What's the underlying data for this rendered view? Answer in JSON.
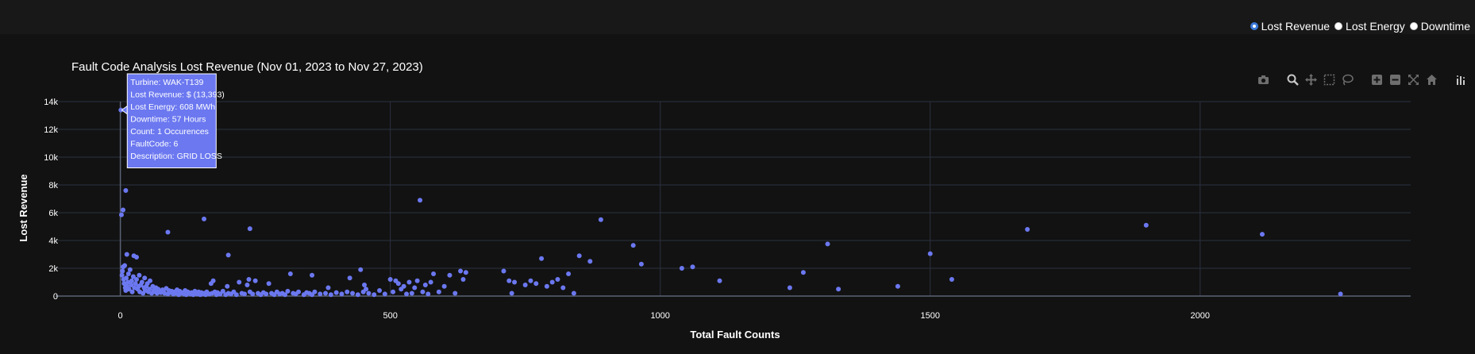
{
  "metric_selector": {
    "options": [
      {
        "label": "Lost Revenue",
        "checked": true
      },
      {
        "label": "Lost Energy",
        "checked": false
      },
      {
        "label": "Downtime",
        "checked": false
      }
    ]
  },
  "modebar": {
    "buttons": [
      "camera-icon",
      "zoom-icon",
      "pan-icon",
      "box-select-icon",
      "lasso-select-icon",
      "zoom-in-icon",
      "zoom-out-icon",
      "autoscale-icon",
      "reset-axes-icon",
      "plotly-logo-icon"
    ]
  },
  "tooltip": {
    "lines": [
      "Turbine: WAK-T139",
      "Lost Revenue: $ (13,393)",
      "Lost Energy: 608 MWh",
      "Downtime: 57 Hours",
      "Count: 1 Occurences",
      "FaultCode: 6",
      "Description: GRID LOSS"
    ],
    "point": {
      "x": 1,
      "y": 13393
    }
  },
  "colors": {
    "marker": "#6b78f0",
    "grid": "#2b3140",
    "background": "#121212",
    "tooltip_bg": "#6b78f0"
  },
  "chart_data": {
    "type": "scatter",
    "title": "Fault Code Analysis Lost Revenue (Nov 01, 2023 to Nov 27, 2023)",
    "xlabel": "Total Fault Counts",
    "ylabel": "Lost Revenue",
    "xlim": [
      -120,
      2390
    ],
    "ylim": [
      0,
      14000
    ],
    "x_ticks": [
      0,
      500,
      1000,
      1500,
      2000
    ],
    "x_tick_labels": [
      "0",
      "500",
      "1000",
      "1500",
      "2000"
    ],
    "y_ticks": [
      0,
      2000,
      4000,
      6000,
      8000,
      10000,
      12000,
      14000
    ],
    "y_tick_labels": [
      "0",
      "2k",
      "4k",
      "6k",
      "8k",
      "10k",
      "12k",
      "14k"
    ],
    "grid": true,
    "series": [
      {
        "points": [
          [
            1,
            13393
          ],
          [
            2,
            5850
          ],
          [
            5,
            6200
          ],
          [
            10,
            7600
          ],
          [
            12,
            3000
          ],
          [
            25,
            2900
          ],
          [
            30,
            2800
          ],
          [
            88,
            4600
          ],
          [
            155,
            5550
          ],
          [
            200,
            2950
          ],
          [
            240,
            4850
          ],
          [
            555,
            6900
          ],
          [
            890,
            5500
          ],
          [
            950,
            3650
          ],
          [
            1310,
            3750
          ],
          [
            1500,
            3050
          ],
          [
            1680,
            4800
          ],
          [
            1900,
            5100
          ],
          [
            2115,
            4450
          ],
          [
            3,
            1500
          ],
          [
            4,
            1800
          ],
          [
            5,
            2100
          ],
          [
            6,
            1200
          ],
          [
            7,
            900
          ],
          [
            8,
            2200
          ],
          [
            9,
            600
          ],
          [
            10,
            400
          ],
          [
            11,
            1300
          ],
          [
            12,
            700
          ],
          [
            14,
            1000
          ],
          [
            15,
            1600
          ],
          [
            16,
            500
          ],
          [
            18,
            1900
          ],
          [
            20,
            800
          ],
          [
            21,
            1100
          ],
          [
            22,
            300
          ],
          [
            24,
            1400
          ],
          [
            26,
            600
          ],
          [
            28,
            900
          ],
          [
            30,
            1200
          ],
          [
            32,
            500
          ],
          [
            34,
            700
          ],
          [
            35,
            1500
          ],
          [
            36,
            300
          ],
          [
            38,
            800
          ],
          [
            40,
            1000
          ],
          [
            42,
            200
          ],
          [
            44,
            600
          ],
          [
            45,
            1300
          ],
          [
            46,
            400
          ],
          [
            48,
            700
          ],
          [
            50,
            900
          ],
          [
            52,
            300
          ],
          [
            54,
            500
          ],
          [
            55,
            1100
          ],
          [
            58,
            200
          ],
          [
            60,
            700
          ],
          [
            62,
            400
          ],
          [
            64,
            300
          ],
          [
            66,
            600
          ],
          [
            68,
            200
          ],
          [
            70,
            500
          ],
          [
            72,
            350
          ],
          [
            75,
            250
          ],
          [
            78,
            450
          ],
          [
            80,
            300
          ],
          [
            82,
            200
          ],
          [
            85,
            550
          ],
          [
            88,
            150
          ],
          [
            90,
            400
          ],
          [
            92,
            250
          ],
          [
            95,
            350
          ],
          [
            98,
            150
          ],
          [
            100,
            300
          ],
          [
            102,
            200
          ],
          [
            105,
            450
          ],
          [
            108,
            100
          ],
          [
            110,
            350
          ],
          [
            112,
            200
          ],
          [
            115,
            250
          ],
          [
            118,
            150
          ],
          [
            120,
            400
          ],
          [
            122,
            100
          ],
          [
            125,
            300
          ],
          [
            128,
            200
          ],
          [
            130,
            150
          ],
          [
            132,
            250
          ],
          [
            135,
            100
          ],
          [
            138,
            350
          ],
          [
            140,
            200
          ],
          [
            142,
            150
          ],
          [
            145,
            300
          ],
          [
            148,
            100
          ],
          [
            150,
            250
          ],
          [
            152,
            150
          ],
          [
            155,
            200
          ],
          [
            158,
            100
          ],
          [
            160,
            300
          ],
          [
            165,
            150
          ],
          [
            168,
            900
          ],
          [
            170,
            200
          ],
          [
            172,
            1100
          ],
          [
            175,
            300
          ],
          [
            178,
            100
          ],
          [
            180,
            250
          ],
          [
            185,
            150
          ],
          [
            190,
            350
          ],
          [
            195,
            100
          ],
          [
            198,
            700
          ],
          [
            200,
            200
          ],
          [
            205,
            150
          ],
          [
            210,
            300
          ],
          [
            215,
            100
          ],
          [
            220,
            1000
          ],
          [
            225,
            200
          ],
          [
            230,
            150
          ],
          [
            235,
            800
          ],
          [
            238,
            1200
          ],
          [
            240,
            300
          ],
          [
            245,
            150
          ],
          [
            250,
            1100
          ],
          [
            255,
            200
          ],
          [
            260,
            100
          ],
          [
            265,
            250
          ],
          [
            270,
            150
          ],
          [
            275,
            900
          ],
          [
            280,
            200
          ],
          [
            285,
            100
          ],
          [
            290,
            300
          ],
          [
            295,
            150
          ],
          [
            300,
            200
          ],
          [
            305,
            100
          ],
          [
            310,
            350
          ],
          [
            315,
            1600
          ],
          [
            320,
            200
          ],
          [
            325,
            150
          ],
          [
            330,
            300
          ],
          [
            340,
            100
          ],
          [
            345,
            250
          ],
          [
            350,
            200
          ],
          [
            355,
            100
          ],
          [
            360,
            300
          ],
          [
            355,
            1500
          ],
          [
            370,
            150
          ],
          [
            380,
            200
          ],
          [
            385,
            600
          ],
          [
            390,
            100
          ],
          [
            400,
            250
          ],
          [
            410,
            150
          ],
          [
            420,
            300
          ],
          [
            430,
            200
          ],
          [
            440,
            100
          ],
          [
            425,
            1300
          ],
          [
            445,
            1900
          ],
          [
            450,
            300
          ],
          [
            452,
            800
          ],
          [
            455,
            500
          ],
          [
            460,
            200
          ],
          [
            470,
            100
          ],
          [
            480,
            400
          ],
          [
            490,
            150
          ],
          [
            500,
            1200
          ],
          [
            505,
            300
          ],
          [
            510,
            1100
          ],
          [
            515,
            900
          ],
          [
            520,
            500
          ],
          [
            525,
            700
          ],
          [
            530,
            150
          ],
          [
            535,
            1000
          ],
          [
            540,
            200
          ],
          [
            545,
            600
          ],
          [
            550,
            1100
          ],
          [
            560,
            300
          ],
          [
            565,
            800
          ],
          [
            570,
            150
          ],
          [
            575,
            1000
          ],
          [
            580,
            1600
          ],
          [
            590,
            300
          ],
          [
            600,
            700
          ],
          [
            610,
            1500
          ],
          [
            620,
            200
          ],
          [
            630,
            1800
          ],
          [
            635,
            1200
          ],
          [
            640,
            1700
          ],
          [
            710,
            1800
          ],
          [
            720,
            1100
          ],
          [
            725,
            200
          ],
          [
            730,
            1000
          ],
          [
            750,
            800
          ],
          [
            760,
            1100
          ],
          [
            770,
            900
          ],
          [
            780,
            2700
          ],
          [
            790,
            700
          ],
          [
            800,
            1000
          ],
          [
            810,
            1200
          ],
          [
            820,
            600
          ],
          [
            830,
            1600
          ],
          [
            840,
            200
          ],
          [
            850,
            2900
          ],
          [
            870,
            2500
          ],
          [
            965,
            2300
          ],
          [
            1040,
            2000
          ],
          [
            1060,
            2100
          ],
          [
            1110,
            1100
          ],
          [
            1240,
            600
          ],
          [
            1265,
            1700
          ],
          [
            1330,
            500
          ],
          [
            1440,
            700
          ],
          [
            1540,
            1200
          ],
          [
            2260,
            150
          ]
        ]
      }
    ]
  }
}
